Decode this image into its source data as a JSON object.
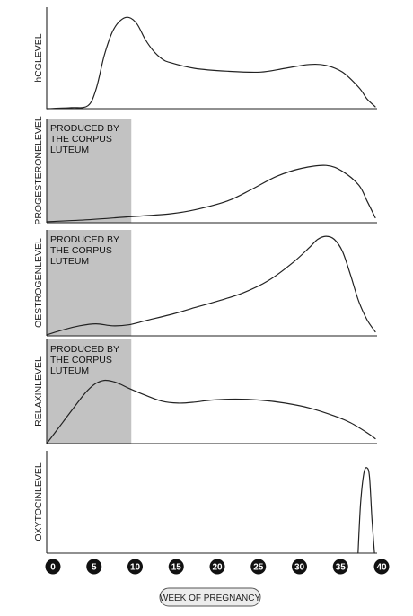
{
  "chart_data": {
    "type": "line",
    "xlabel": "WEEK OF PREGNANCY",
    "xlim": [
      0,
      40
    ],
    "x_ticks": [
      "0",
      "5",
      "10",
      "15",
      "20",
      "25",
      "30",
      "35",
      "40"
    ],
    "shaded_note": [
      "PRODUCED BY",
      "THE CORPUS",
      "LUTEUM"
    ],
    "panels": [
      {
        "ylabel": "hCGLEVEL",
        "ylim": [
          0,
          100
        ],
        "series": [
          {
            "points": [
              [
                0,
                0
              ],
              [
                3,
                1
              ],
              [
                5,
                3
              ],
              [
                6,
                20
              ],
              [
                7,
                55
              ],
              [
                8,
                80
              ],
              [
                9,
                92
              ],
              [
                10,
                95
              ],
              [
                11,
                88
              ],
              [
                12,
                72
              ],
              [
                13,
                60
              ],
              [
                14,
                52
              ],
              [
                15,
                48
              ],
              [
                18,
                42
              ],
              [
                22,
                39
              ],
              [
                26,
                38
              ],
              [
                29,
                42
              ],
              [
                32,
                46
              ],
              [
                34,
                45
              ],
              [
                36,
                38
              ],
              [
                38,
                22
              ],
              [
                39,
                10
              ],
              [
                40,
                2
              ]
            ]
          }
        ]
      },
      {
        "ylabel": "PROGESTERONELEVEL",
        "ylim": [
          0,
          100
        ],
        "shaded_until": 10.3,
        "series": [
          {
            "points": [
              [
                0,
                1
              ],
              [
                5,
                3
              ],
              [
                10,
                6
              ],
              [
                15,
                9
              ],
              [
                18,
                13
              ],
              [
                22,
                22
              ],
              [
                25,
                34
              ],
              [
                28,
                47
              ],
              [
                31,
                55
              ],
              [
                34,
                58
              ],
              [
                36,
                52
              ],
              [
                38,
                38
              ],
              [
                39,
                22
              ],
              [
                40,
                5
              ]
            ]
          }
        ]
      },
      {
        "ylabel": "OESTROGENLEVEL",
        "ylim": [
          0,
          100
        ],
        "shaded_until": 10.3,
        "series": [
          {
            "points": [
              [
                0,
                1
              ],
              [
                2,
                6
              ],
              [
                4,
                10
              ],
              [
                6,
                12
              ],
              [
                8,
                10
              ],
              [
                10,
                11
              ],
              [
                12,
                15
              ],
              [
                15,
                21
              ],
              [
                18,
                28
              ],
              [
                21,
                35
              ],
              [
                24,
                43
              ],
              [
                27,
                55
              ],
              [
                30,
                73
              ],
              [
                32,
                88
              ],
              [
                33,
                96
              ],
              [
                34,
                99
              ],
              [
                35,
                96
              ],
              [
                36,
                84
              ],
              [
                37,
                60
              ],
              [
                38,
                34
              ],
              [
                39,
                16
              ],
              [
                40,
                4
              ]
            ]
          }
        ]
      },
      {
        "ylabel": "RELAXINLEVEL",
        "ylim": [
          0,
          100
        ],
        "shaded_until": 10.3,
        "series": [
          {
            "points": [
              [
                0,
                0
              ],
              [
                2,
                22
              ],
              [
                4,
                44
              ],
              [
                5,
                54
              ],
              [
                6,
                61
              ],
              [
                7,
                64
              ],
              [
                8,
                63
              ],
              [
                9,
                60
              ],
              [
                10,
                56
              ],
              [
                12,
                49
              ],
              [
                14,
                43
              ],
              [
                16,
                41
              ],
              [
                18,
                42
              ],
              [
                20,
                44
              ],
              [
                23,
                45
              ],
              [
                26,
                44
              ],
              [
                29,
                41
              ],
              [
                32,
                36
              ],
              [
                35,
                28
              ],
              [
                37,
                21
              ],
              [
                39,
                11
              ],
              [
                40,
                5
              ]
            ]
          }
        ]
      },
      {
        "ylabel": "OXYTOCINLEVEL",
        "ylim": [
          0,
          100
        ],
        "series": [
          {
            "points": [
              [
                37.9,
                0
              ],
              [
                38.2,
                50
              ],
              [
                38.6,
                82
              ],
              [
                39.0,
                88
              ],
              [
                39.3,
                78
              ],
              [
                39.6,
                35
              ],
              [
                39.9,
                0
              ]
            ]
          }
        ]
      }
    ]
  }
}
